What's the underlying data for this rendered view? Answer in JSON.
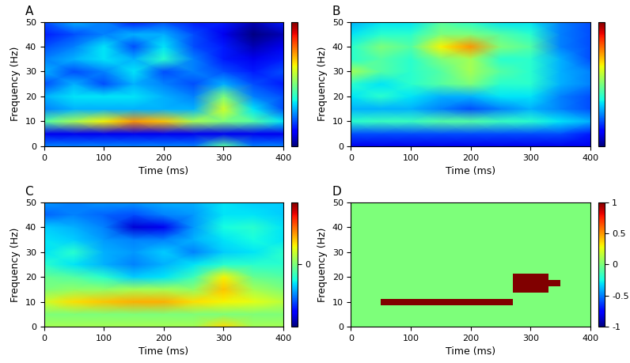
{
  "chart_data": [
    {
      "type": "heatmap",
      "title": "A",
      "x_label": "Time (ms)",
      "y_label": "Frequency (Hz)",
      "xlim": [
        0,
        400
      ],
      "ylim": [
        0,
        50
      ],
      "xticks": [
        0,
        100,
        200,
        300,
        400
      ],
      "yticks": [
        0,
        10,
        20,
        30,
        40,
        50
      ],
      "color": "jet",
      "color_range": [
        0,
        1
      ],
      "color_ticks": [],
      "x": [
        0,
        50,
        100,
        150,
        200,
        250,
        300,
        350,
        400
      ],
      "y": [
        0,
        5,
        10,
        15,
        20,
        25,
        30,
        35,
        40,
        45,
        50
      ],
      "cells": [
        [
          0.25,
          0.25,
          0.25,
          0.25,
          0.25,
          0.25,
          0.45,
          0.25,
          0.25
        ],
        [
          0.1,
          0.1,
          0.1,
          0.1,
          0.1,
          0.1,
          0.1,
          0.1,
          0.1
        ],
        [
          0.45,
          0.55,
          0.65,
          0.75,
          0.7,
          0.55,
          0.5,
          0.45,
          0.35
        ],
        [
          0.25,
          0.3,
          0.3,
          0.3,
          0.3,
          0.3,
          0.6,
          0.35,
          0.2
        ],
        [
          0.3,
          0.35,
          0.35,
          0.35,
          0.3,
          0.25,
          0.5,
          0.25,
          0.2
        ],
        [
          0.2,
          0.3,
          0.2,
          0.3,
          0.25,
          0.2,
          0.3,
          0.2,
          0.15
        ],
        [
          0.3,
          0.2,
          0.25,
          0.35,
          0.2,
          0.25,
          0.2,
          0.15,
          0.2
        ],
        [
          0.25,
          0.3,
          0.35,
          0.3,
          0.4,
          0.25,
          0.15,
          0.1,
          0.15
        ],
        [
          0.2,
          0.25,
          0.35,
          0.2,
          0.35,
          0.2,
          0.15,
          0.05,
          0.1
        ],
        [
          0.15,
          0.2,
          0.25,
          0.3,
          0.3,
          0.2,
          0.1,
          0.0,
          0.05
        ],
        [
          0.2,
          0.3,
          0.25,
          0.15,
          0.2,
          0.15,
          0.15,
          0.05,
          0.15
        ]
      ]
    },
    {
      "type": "heatmap",
      "title": "B",
      "x_label": "Time (ms)",
      "y_label": "Frequency (Hz)",
      "xlim": [
        0,
        400
      ],
      "ylim": [
        0,
        50
      ],
      "xticks": [
        0,
        100,
        200,
        300,
        400
      ],
      "yticks": [
        0,
        10,
        20,
        30,
        40,
        50
      ],
      "color": "jet",
      "color_range": [
        0,
        1
      ],
      "color_ticks": [],
      "x": [
        0,
        50,
        100,
        150,
        200,
        250,
        300,
        350,
        400
      ],
      "y": [
        0,
        5,
        10,
        15,
        20,
        25,
        30,
        35,
        40,
        45,
        50
      ],
      "cells": [
        [
          0.1,
          0.1,
          0.1,
          0.1,
          0.1,
          0.1,
          0.1,
          0.1,
          0.1
        ],
        [
          0.2,
          0.2,
          0.2,
          0.2,
          0.2,
          0.2,
          0.2,
          0.2,
          0.15
        ],
        [
          0.4,
          0.42,
          0.42,
          0.45,
          0.45,
          0.42,
          0.4,
          0.35,
          0.3
        ],
        [
          0.3,
          0.3,
          0.3,
          0.25,
          0.2,
          0.25,
          0.3,
          0.25,
          0.2
        ],
        [
          0.35,
          0.4,
          0.35,
          0.3,
          0.3,
          0.35,
          0.35,
          0.25,
          0.2
        ],
        [
          0.4,
          0.35,
          0.4,
          0.45,
          0.5,
          0.4,
          0.4,
          0.3,
          0.25
        ],
        [
          0.55,
          0.45,
          0.4,
          0.45,
          0.55,
          0.45,
          0.4,
          0.3,
          0.25
        ],
        [
          0.4,
          0.45,
          0.4,
          0.5,
          0.55,
          0.4,
          0.4,
          0.3,
          0.2
        ],
        [
          0.4,
          0.5,
          0.45,
          0.65,
          0.75,
          0.5,
          0.45,
          0.25,
          0.2
        ],
        [
          0.35,
          0.4,
          0.4,
          0.5,
          0.5,
          0.45,
          0.4,
          0.25,
          0.2
        ],
        [
          0.3,
          0.35,
          0.35,
          0.45,
          0.4,
          0.35,
          0.35,
          0.25,
          0.2
        ]
      ]
    },
    {
      "type": "heatmap",
      "title": "C",
      "x_label": "Time (ms)",
      "y_label": "Frequency (Hz)",
      "xlim": [
        0,
        400
      ],
      "ylim": [
        0,
        50
      ],
      "xticks": [
        0,
        100,
        200,
        300,
        400
      ],
      "yticks": [
        0,
        10,
        20,
        30,
        40,
        50
      ],
      "color": "jet",
      "color_range": [
        -1,
        1
      ],
      "color_ticks": [
        0
      ],
      "x": [
        0,
        50,
        100,
        150,
        200,
        250,
        300,
        350,
        400
      ],
      "y": [
        0,
        5,
        10,
        15,
        20,
        25,
        30,
        35,
        40,
        45,
        50
      ],
      "cells": [
        [
          0.1,
          0.1,
          0.1,
          0.1,
          0.1,
          0.1,
          0.35,
          0.1,
          0.1
        ],
        [
          0.0,
          0.0,
          0.0,
          0.0,
          0.0,
          0.0,
          0.0,
          0.0,
          0.0
        ],
        [
          0.2,
          0.35,
          0.4,
          0.45,
          0.45,
          0.35,
          0.3,
          0.25,
          0.15
        ],
        [
          0.0,
          0.05,
          0.05,
          0.1,
          0.1,
          0.05,
          0.4,
          0.1,
          0.0
        ],
        [
          -0.05,
          -0.1,
          -0.2,
          -0.35,
          -0.3,
          -0.15,
          0.3,
          -0.05,
          -0.1
        ],
        [
          -0.2,
          -0.3,
          -0.4,
          -0.5,
          -0.4,
          -0.3,
          -0.2,
          -0.2,
          -0.2
        ],
        [
          -0.3,
          -0.2,
          -0.4,
          -0.45,
          -0.35,
          -0.5,
          -0.35,
          -0.3,
          -0.2
        ],
        [
          -0.3,
          -0.35,
          -0.45,
          -0.5,
          -0.5,
          -0.4,
          -0.3,
          -0.25,
          -0.3
        ],
        [
          -0.35,
          -0.4,
          -0.5,
          -0.85,
          -0.8,
          -0.45,
          -0.25,
          -0.2,
          -0.3
        ],
        [
          -0.55,
          -0.5,
          -0.55,
          -0.6,
          -0.5,
          -0.45,
          -0.3,
          -0.3,
          -0.35
        ],
        [
          -0.45,
          -0.5,
          -0.45,
          -0.45,
          -0.4,
          -0.4,
          -0.3,
          -0.35,
          -0.35
        ]
      ]
    },
    {
      "type": "mask",
      "title": "D",
      "x_label": "Time (ms)",
      "y_label": "Frequency (Hz)",
      "xlim": [
        0,
        400
      ],
      "ylim": [
        0,
        50
      ],
      "xticks": [
        0,
        100,
        200,
        300,
        400
      ],
      "yticks": [
        0,
        10,
        20,
        30,
        40,
        50
      ],
      "color": "jet",
      "color_range": [
        -1,
        1
      ],
      "color_ticks": [
        -1,
        -0.5,
        0,
        0.5,
        1
      ],
      "x": [
        0,
        20,
        40,
        60,
        80,
        100,
        120,
        140,
        160,
        180,
        200,
        220,
        240,
        260,
        280,
        300,
        320,
        340,
        360,
        380,
        400
      ],
      "y": [
        0,
        2.5,
        5,
        7.5,
        10,
        12.5,
        15,
        17.5,
        20,
        22.5,
        25,
        27.5,
        30,
        32.5,
        35,
        37.5,
        40,
        42.5,
        45,
        47.5,
        50
      ],
      "cells": [
        [
          0,
          0,
          0,
          0,
          0,
          0,
          0,
          0,
          0,
          0,
          0,
          0,
          0,
          0,
          0,
          0,
          0,
          0,
          0,
          0,
          0
        ],
        [
          0,
          0,
          0,
          0,
          0,
          0,
          0,
          0,
          0,
          0,
          0,
          0,
          0,
          0,
          0,
          0,
          0,
          0,
          0,
          0,
          0
        ],
        [
          0,
          0,
          0,
          0,
          0,
          0,
          0,
          0,
          0,
          0,
          0,
          0,
          0,
          0,
          0,
          0,
          0,
          0,
          0,
          0,
          0
        ],
        [
          0,
          0,
          0,
          0,
          0,
          0,
          0,
          0,
          0,
          0,
          0,
          0,
          0,
          0,
          0,
          0,
          0,
          0,
          0,
          0,
          0
        ],
        [
          0,
          0,
          0,
          1,
          1,
          1,
          1,
          1,
          1,
          1,
          1,
          1,
          1,
          1,
          0,
          0,
          0,
          0,
          0,
          0,
          0
        ],
        [
          0,
          0,
          0,
          0,
          0,
          0,
          0,
          0,
          0,
          0,
          0,
          0,
          0,
          0,
          0,
          0,
          0,
          0,
          0,
          0,
          0
        ],
        [
          0,
          0,
          0,
          0,
          0,
          0,
          0,
          0,
          0,
          0,
          0,
          0,
          0,
          0,
          1,
          1,
          1,
          0,
          0,
          0,
          0
        ],
        [
          0,
          0,
          0,
          0,
          0,
          0,
          0,
          0,
          0,
          0,
          0,
          0,
          0,
          0,
          1,
          1,
          1,
          1,
          0,
          0,
          0
        ],
        [
          0,
          0,
          0,
          0,
          0,
          0,
          0,
          0,
          0,
          0,
          0,
          0,
          0,
          0,
          1,
          1,
          1,
          0,
          0,
          0,
          0
        ],
        [
          0,
          0,
          0,
          0,
          0,
          0,
          0,
          0,
          0,
          0,
          0,
          0,
          0,
          0,
          0,
          0,
          0,
          0,
          0,
          0,
          0
        ],
        [
          0,
          0,
          0,
          0,
          0,
          0,
          0,
          0,
          0,
          0,
          0,
          0,
          0,
          0,
          0,
          0,
          0,
          0,
          0,
          0,
          0
        ],
        [
          0,
          0,
          0,
          0,
          0,
          0,
          0,
          0,
          0,
          0,
          0,
          0,
          0,
          0,
          0,
          0,
          0,
          0,
          0,
          0,
          0
        ],
        [
          0,
          0,
          0,
          0,
          0,
          0,
          0,
          0,
          0,
          0,
          0,
          0,
          0,
          0,
          0,
          0,
          0,
          0,
          0,
          0,
          0
        ],
        [
          0,
          0,
          0,
          0,
          0,
          0,
          0,
          0,
          0,
          0,
          0,
          0,
          0,
          0,
          0,
          0,
          0,
          0,
          0,
          0,
          0
        ],
        [
          0,
          0,
          0,
          0,
          0,
          0,
          0,
          0,
          0,
          0,
          0,
          0,
          0,
          0,
          0,
          0,
          0,
          0,
          0,
          0,
          0
        ],
        [
          0,
          0,
          0,
          0,
          0,
          0,
          0,
          0,
          0,
          0,
          0,
          0,
          0,
          0,
          0,
          0,
          0,
          0,
          0,
          0,
          0
        ],
        [
          0,
          0,
          0,
          0,
          0,
          0,
          0,
          0,
          0,
          0,
          0,
          0,
          0,
          0,
          0,
          0,
          0,
          0,
          0,
          0,
          0
        ],
        [
          0,
          0,
          0,
          0,
          0,
          0,
          0,
          0,
          0,
          0,
          0,
          0,
          0,
          0,
          0,
          0,
          0,
          0,
          0,
          0,
          0
        ],
        [
          0,
          0,
          0,
          0,
          0,
          0,
          0,
          0,
          0,
          0,
          0,
          0,
          0,
          0,
          0,
          0,
          0,
          0,
          0,
          0,
          0
        ],
        [
          0,
          0,
          0,
          0,
          0,
          0,
          0,
          0,
          0,
          0,
          0,
          0,
          0,
          0,
          0,
          0,
          0,
          0,
          0,
          0,
          0
        ],
        [
          0,
          0,
          0,
          0,
          0,
          0,
          0,
          0,
          0,
          0,
          0,
          0,
          0,
          0,
          0,
          0,
          0,
          0,
          0,
          0,
          0
        ]
      ]
    }
  ]
}
